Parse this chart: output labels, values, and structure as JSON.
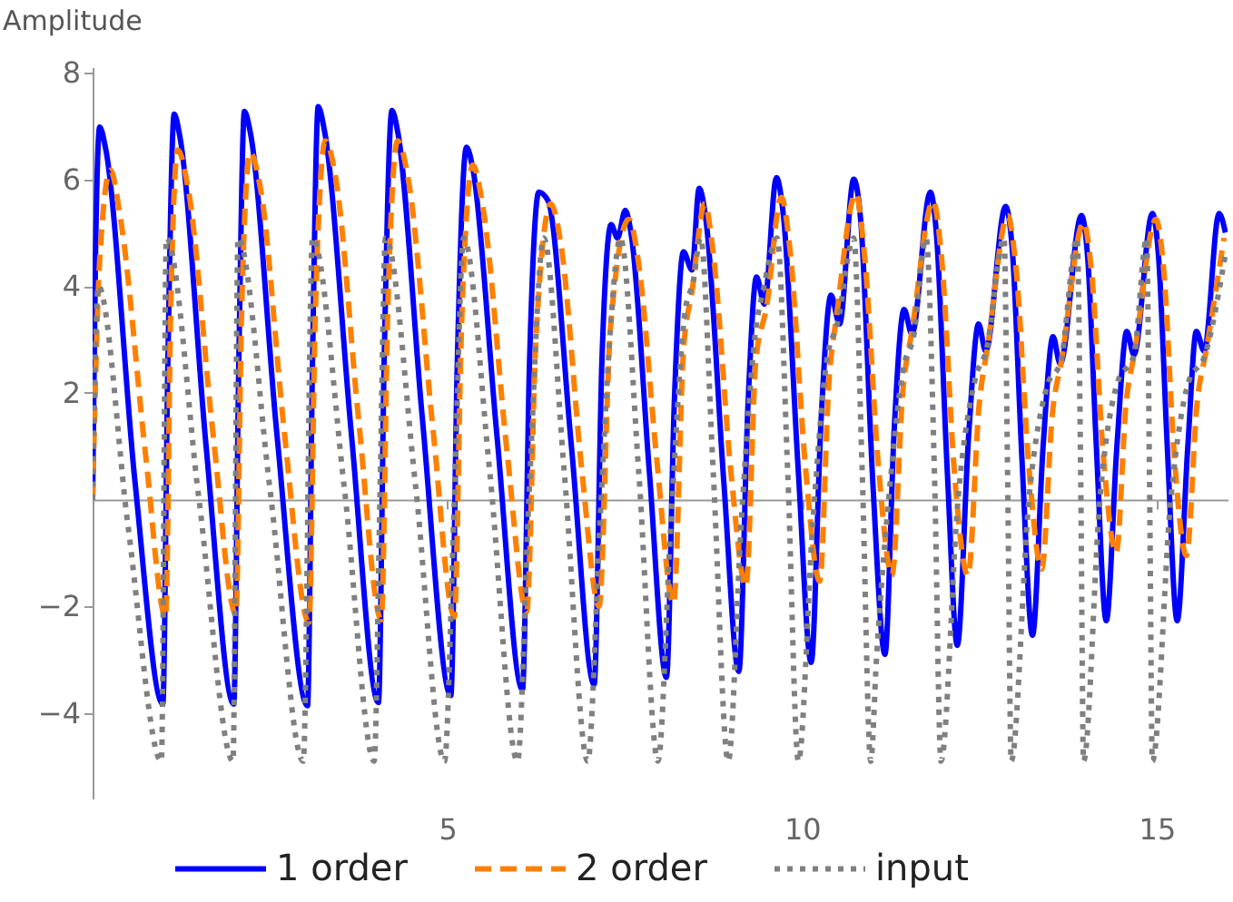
{
  "chart_data": {
    "type": "line",
    "ylabel": "Amplitude",
    "xlim": [
      0,
      16
    ],
    "ylim": [
      -5.6,
      8.1
    ],
    "xticks": [
      5,
      10,
      15
    ],
    "yticks": [
      -4,
      -2,
      2,
      4,
      6,
      8
    ],
    "legend": "bottom",
    "series": [
      {
        "name": "1 order",
        "color": "#0000ff",
        "line_style": "solid",
        "x": [
          0,
          0.04,
          0.1,
          0.18,
          0.6,
          0.99,
          1.06,
          1.15,
          1.23,
          1.6,
          1.99,
          2.06,
          2.14,
          2.22,
          2.6,
          3.03,
          3.1,
          3.18,
          3.27,
          3.65,
          4.03,
          4.11,
          4.22,
          4.3,
          4.65,
          5.05,
          5.14,
          5.27,
          5.36,
          5.7,
          6.06,
          6.16,
          6.29,
          6.42,
          6.75,
          7.07,
          7.18,
          7.31,
          7.4,
          7.51,
          7.6,
          7.85,
          8.09,
          8.2,
          8.33,
          8.45,
          8.55,
          8.65,
          8.9,
          9.11,
          9.24,
          9.36,
          9.47,
          9.64,
          9.74,
          9.95,
          10.13,
          10.27,
          10.41,
          10.53,
          10.73,
          10.83,
          11.0,
          11.17,
          11.3,
          11.44,
          11.55,
          11.81,
          11.9,
          12.05,
          12.19,
          12.35,
          12.49,
          12.59,
          12.87,
          12.97,
          13.1,
          13.25,
          13.4,
          13.54,
          13.64,
          13.94,
          14.03,
          14.15,
          14.29,
          14.44,
          14.58,
          14.68,
          14.94,
          15.03,
          15.15,
          15.29,
          15.44,
          15.56,
          15.67,
          15.88,
          15.97
        ],
        "values": [
          0,
          4.5,
          6.98,
          6.6,
          0.3,
          -3.83,
          2.5,
          7.22,
          6.8,
          1.0,
          -3.83,
          2.5,
          7.27,
          6.9,
          1.2,
          -3.86,
          2.6,
          7.36,
          6.9,
          1.2,
          -3.8,
          2.6,
          7.29,
          6.9,
          1.5,
          -3.67,
          2.5,
          6.6,
          6.2,
          1.2,
          -3.56,
          2.6,
          5.76,
          5.6,
          1.0,
          -3.46,
          2.6,
          5.15,
          4.9,
          5.42,
          4.9,
          0.5,
          -3.33,
          1.8,
          4.64,
          4.3,
          5.83,
          5.2,
          0.3,
          -3.22,
          1.8,
          4.17,
          3.66,
          6.03,
          5.3,
          0.5,
          -3.05,
          1.5,
          3.83,
          3.29,
          6.0,
          5.2,
          0.3,
          -2.9,
          1.3,
          3.56,
          3.1,
          5.76,
          4.9,
          0.5,
          -2.73,
          1.2,
          3.29,
          2.78,
          5.49,
          4.6,
          0.8,
          -2.54,
          1.0,
          3.05,
          2.54,
          5.32,
          4.5,
          1.0,
          -2.27,
          1.0,
          3.15,
          2.71,
          5.36,
          4.5,
          1.0,
          -2.27,
          1.0,
          3.15,
          2.78,
          5.36,
          5.0
        ]
      },
      {
        "name": "2 order",
        "color": "#ff8000",
        "line_style": "dashed",
        "x": [
          0,
          0.1,
          0.25,
          0.4,
          0.75,
          1.03,
          1.1,
          1.2,
          1.35,
          1.7,
          2.02,
          2.1,
          2.22,
          2.37,
          2.7,
          3.05,
          3.14,
          3.28,
          3.43,
          3.75,
          4.07,
          4.16,
          4.3,
          4.45,
          4.8,
          5.1,
          5.2,
          5.36,
          5.5,
          5.85,
          6.12,
          6.25,
          6.46,
          6.6,
          6.9,
          7.14,
          7.3,
          7.56,
          7.7,
          7.95,
          8.19,
          8.33,
          8.45,
          8.63,
          8.75,
          9.0,
          9.21,
          9.35,
          9.5,
          9.71,
          9.83,
          10.05,
          10.25,
          10.38,
          10.49,
          10.76,
          10.88,
          11.08,
          11.27,
          11.42,
          11.55,
          11.85,
          11.97,
          12.15,
          12.34,
          12.5,
          12.62,
          12.9,
          13.02,
          13.2,
          13.38,
          13.53,
          13.66,
          13.97,
          14.08,
          14.25,
          14.43,
          14.57,
          14.69,
          14.99,
          15.1,
          15.25,
          15.42,
          15.57,
          15.7,
          15.95
        ],
        "values": [
          0,
          4.5,
          6.17,
          5.2,
          0.8,
          -2.2,
          3.5,
          6.55,
          5.8,
          1.2,
          -2.15,
          3.5,
          6.5,
          5.8,
          1.3,
          -2.3,
          3.5,
          6.72,
          6.0,
          1.5,
          -2.25,
          3.5,
          6.72,
          6.0,
          1.3,
          -2.2,
          3.2,
          6.27,
          5.5,
          0.8,
          -2.1,
          3.0,
          5.54,
          4.8,
          0.5,
          -2.0,
          3.2,
          5.25,
          4.4,
          0.8,
          -1.95,
          2.8,
          3.9,
          5.54,
          4.6,
          0.5,
          -1.63,
          2.6,
          3.6,
          5.66,
          4.7,
          0.6,
          -1.53,
          2.2,
          3.45,
          5.73,
          4.6,
          0.6,
          -1.42,
          2.0,
          3.15,
          5.59,
          4.5,
          0.5,
          -1.42,
          1.8,
          2.88,
          5.32,
          4.3,
          0.6,
          -1.3,
          1.6,
          2.61,
          5.19,
          4.3,
          0.8,
          -1.0,
          1.8,
          2.76,
          5.25,
          4.3,
          0.8,
          -1.05,
          1.8,
          2.8,
          4.9
        ]
      },
      {
        "name": "input",
        "color": "#808080",
        "line_style": "dotted",
        "x": [
          0,
          0.08,
          0.5,
          0.97,
          1.04,
          1.5,
          1.98,
          2.05,
          2.5,
          2.97,
          3.1,
          3.55,
          3.97,
          4.05,
          4.13,
          4.55,
          4.96,
          5.1,
          5.23,
          5.6,
          5.99,
          6.15,
          6.36,
          6.65,
          6.98,
          7.15,
          7.3,
          7.44,
          7.7,
          7.97,
          8.15,
          8.35,
          8.47,
          8.57,
          8.75,
          8.96,
          9.15,
          9.35,
          9.45,
          9.65,
          9.8,
          9.95,
          10.15,
          10.35,
          10.5,
          10.73,
          10.85,
          10.97,
          11.05,
          11.25,
          11.42,
          11.58,
          11.75,
          11.87,
          11.96,
          12.2,
          12.45,
          12.6,
          12.85,
          12.9,
          12.95,
          13.2,
          13.45,
          13.65,
          13.88,
          13.93,
          13.97,
          14.2,
          14.45,
          14.68,
          14.86,
          14.9,
          14.94,
          15.2,
          15.45,
          15.68,
          15.97
        ],
        "values": [
          0,
          4.0,
          -0.5,
          -4.9,
          4.9,
          0,
          -4.9,
          4.9,
          0.2,
          -4.9,
          4.9,
          0.2,
          -4.9,
          0,
          4.9,
          0.3,
          -4.9,
          0,
          4.9,
          0.5,
          -4.9,
          0,
          4.9,
          0.5,
          -4.9,
          -0.5,
          3.2,
          4.9,
          0.5,
          -4.9,
          -0.5,
          3.5,
          4.1,
          4.9,
          0.5,
          -4.9,
          -0.3,
          3.2,
          3.9,
          4.9,
          0.5,
          -4.9,
          -0.5,
          2.6,
          3.3,
          4.9,
          0.5,
          -4.9,
          -3.0,
          0.4,
          2.4,
          3.1,
          4.9,
          0.4,
          -4.9,
          0,
          2.3,
          2.8,
          4.9,
          0.4,
          -4.9,
          0,
          2.1,
          2.6,
          4.9,
          0.4,
          -4.9,
          0,
          2.2,
          2.7,
          4.9,
          0.4,
          -4.9,
          0,
          2.2,
          2.7,
          4.6
        ]
      }
    ]
  }
}
